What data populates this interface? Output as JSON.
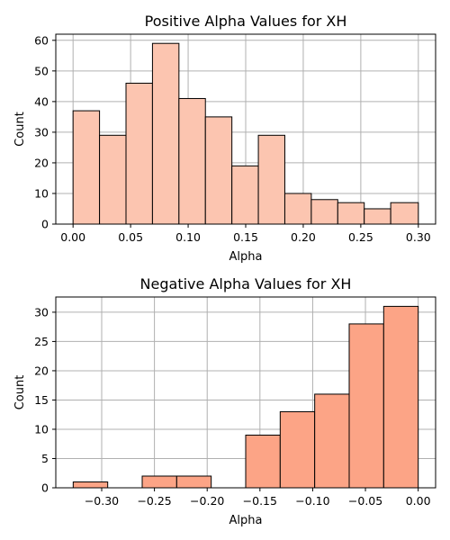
{
  "chart_data": [
    {
      "type": "bar",
      "title": "Positive Alpha Values for XH",
      "xlabel": "Alpha",
      "ylabel": "Count",
      "xlim": [
        -0.015,
        0.315
      ],
      "ylim": [
        0,
        62
      ],
      "xticks": [
        0.0,
        0.05,
        0.1,
        0.15,
        0.2,
        0.25,
        0.3
      ],
      "xtick_labels": [
        "0.00",
        "0.05",
        "0.10",
        "0.15",
        "0.20",
        "0.25",
        "0.30"
      ],
      "yticks": [
        0,
        10,
        20,
        30,
        40,
        50,
        60
      ],
      "ytick_labels": [
        "0",
        "10",
        "20",
        "30",
        "40",
        "50",
        "60"
      ],
      "bin_edges": [
        0.0,
        0.023,
        0.046,
        0.069,
        0.092,
        0.115,
        0.138,
        0.161,
        0.184,
        0.207,
        0.23,
        0.253,
        0.276,
        0.3
      ],
      "values": [
        37,
        29,
        46,
        59,
        41,
        35,
        19,
        29,
        10,
        8,
        7,
        5,
        7
      ],
      "color": "#fcc5b0",
      "grid": true
    },
    {
      "type": "bar",
      "title": "Negative Alpha Values for XH",
      "xlabel": "Alpha",
      "ylabel": "Count",
      "xlim": [
        -0.3435,
        0.0165
      ],
      "ylim": [
        0,
        32.6
      ],
      "xticks": [
        -0.3,
        -0.25,
        -0.2,
        -0.15,
        -0.1,
        -0.05,
        0.0
      ],
      "xtick_labels": [
        "−0.30",
        "−0.25",
        "−0.20",
        "−0.15",
        "−0.10",
        "−0.05",
        "0.00"
      ],
      "yticks": [
        0,
        5,
        10,
        15,
        20,
        25,
        30
      ],
      "ytick_labels": [
        "0",
        "5",
        "10",
        "15",
        "20",
        "25",
        "30"
      ],
      "bin_edges": [
        -0.327,
        -0.2943,
        -0.2616,
        -0.2289,
        -0.1962,
        -0.1635,
        -0.1308,
        -0.0981,
        -0.0654,
        -0.0327,
        0.0
      ],
      "values": [
        1,
        0,
        2,
        2,
        0,
        9,
        13,
        16,
        28,
        31
      ],
      "color": "#fca486",
      "grid": true
    }
  ]
}
